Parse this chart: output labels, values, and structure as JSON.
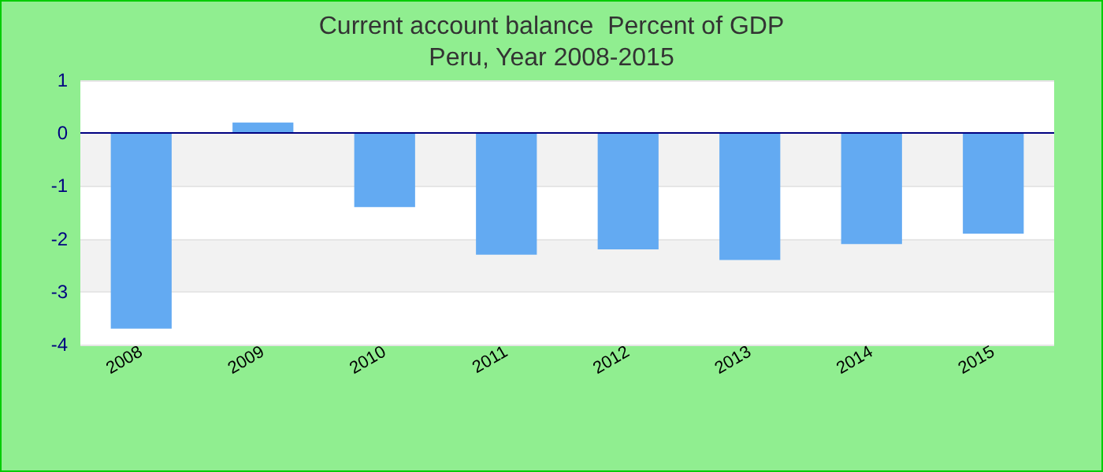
{
  "chart_data": {
    "type": "bar",
    "title": "Current account balance  Percent of GDP",
    "subtitle": "Peru, Year 2008-2015",
    "categories": [
      "2008",
      "2009",
      "2010",
      "2011",
      "2012",
      "2013",
      "2014",
      "2015"
    ],
    "values": [
      -3.7,
      0.2,
      -1.4,
      -2.3,
      -2.2,
      -2.4,
      -2.1,
      -1.9
    ],
    "color": "#63aaf2",
    "ylim": [
      -4,
      1
    ],
    "yticks": [
      -4,
      -3,
      -2,
      -1,
      0,
      1
    ],
    "grid": "y",
    "ref_lines": [
      {
        "axis": "y",
        "value": 0,
        "color": "#000080"
      }
    ]
  }
}
